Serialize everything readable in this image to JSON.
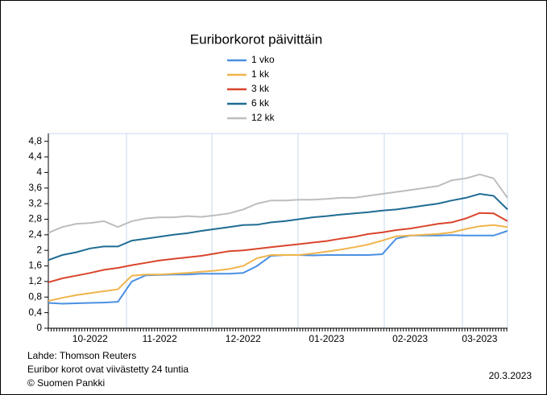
{
  "chart_data": {
    "type": "line",
    "title": "Euriborkorot päivittäin",
    "categories": [
      null,
      null,
      null,
      "10-2022",
      null,
      null,
      null,
      null,
      "11-2022",
      null,
      null,
      null,
      null,
      null,
      "12-2022",
      null,
      null,
      null,
      null,
      null,
      "01-2023",
      null,
      null,
      null,
      null,
      null,
      "02-2023",
      null,
      null,
      null,
      null,
      "03-2023",
      null,
      null
    ],
    "series": [
      {
        "name": "1 vko",
        "color": "#4a90e2",
        "values": [
          0.65,
          0.63,
          0.64,
          0.65,
          0.66,
          0.68,
          1.2,
          1.36,
          1.37,
          1.38,
          1.38,
          1.4,
          1.4,
          1.4,
          1.42,
          1.6,
          1.86,
          1.88,
          1.88,
          1.87,
          1.88,
          1.88,
          1.88,
          1.88,
          1.9,
          2.3,
          2.38,
          2.38,
          2.38,
          2.39,
          2.38,
          2.38,
          2.38,
          2.5
        ]
      },
      {
        "name": "1 kk",
        "color": "#f0b44c",
        "values": [
          0.7,
          0.78,
          0.85,
          0.9,
          0.95,
          1.0,
          1.35,
          1.38,
          1.38,
          1.4,
          1.42,
          1.45,
          1.48,
          1.52,
          1.6,
          1.8,
          1.88,
          1.88,
          1.88,
          1.92,
          1.97,
          2.02,
          2.08,
          2.15,
          2.25,
          2.36,
          2.38,
          2.4,
          2.42,
          2.46,
          2.55,
          2.62,
          2.65,
          2.6
        ]
      },
      {
        "name": "3 kk",
        "color": "#d9442b",
        "values": [
          1.18,
          1.28,
          1.35,
          1.42,
          1.5,
          1.55,
          1.62,
          1.68,
          1.74,
          1.78,
          1.82,
          1.86,
          1.92,
          1.98,
          2.0,
          2.04,
          2.08,
          2.12,
          2.16,
          2.2,
          2.24,
          2.3,
          2.35,
          2.42,
          2.46,
          2.52,
          2.56,
          2.62,
          2.68,
          2.72,
          2.82,
          2.96,
          2.95,
          2.75
        ]
      },
      {
        "name": "6 kk",
        "color": "#1f6b93",
        "values": [
          1.75,
          1.88,
          1.95,
          2.05,
          2.1,
          2.1,
          2.25,
          2.3,
          2.35,
          2.4,
          2.44,
          2.5,
          2.55,
          2.6,
          2.65,
          2.66,
          2.72,
          2.75,
          2.8,
          2.85,
          2.88,
          2.92,
          2.95,
          2.98,
          3.02,
          3.05,
          3.1,
          3.15,
          3.2,
          3.28,
          3.35,
          3.45,
          3.4,
          3.05
        ]
      },
      {
        "name": "12 kk",
        "color": "#bdbdbd",
        "values": [
          2.45,
          2.6,
          2.68,
          2.7,
          2.75,
          2.6,
          2.75,
          2.82,
          2.85,
          2.85,
          2.88,
          2.86,
          2.9,
          2.95,
          3.05,
          3.2,
          3.28,
          3.28,
          3.3,
          3.3,
          3.32,
          3.35,
          3.35,
          3.4,
          3.45,
          3.5,
          3.55,
          3.6,
          3.65,
          3.8,
          3.85,
          3.95,
          3.85,
          3.35
        ]
      }
    ],
    "ylim": [
      0,
      5
    ],
    "yticks": [
      0,
      {
        "value": 0.4,
        "label": "0,4"
      },
      {
        "value": 0.8,
        "label": "0,8"
      },
      {
        "value": 1.2,
        "label": "1,2"
      },
      {
        "value": 1.6,
        "label": "1,6"
      },
      2,
      {
        "value": 2.4,
        "label": "2,4"
      },
      {
        "value": 2.8,
        "label": "2,8"
      },
      {
        "value": 3.2,
        "label": "3,2"
      },
      {
        "value": 3.6,
        "label": "3,6"
      },
      4,
      {
        "value": 4.4,
        "label": "4,4"
      },
      {
        "value": 4.8,
        "label": "4,8"
      }
    ],
    "notes": [
      "Lahde: Thomson Reuters",
      "Euribor korot ovat viivästetty 24 tuntia",
      "© Suomen Pankki"
    ],
    "date": "20.3.2023"
  }
}
